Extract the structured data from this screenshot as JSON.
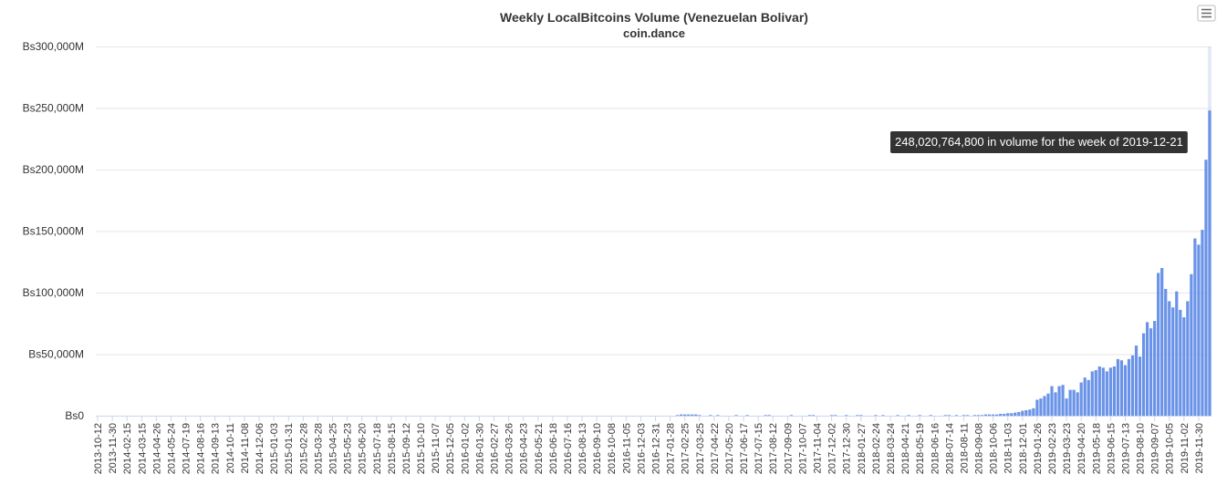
{
  "chart_data": {
    "type": "bar",
    "title": "Weekly LocalBitcoins Volume (Venezuelan Bolivar)",
    "subtitle": "coin.dance",
    "tooltip": "248,020,764,800 in volume for the week of 2019-12-21",
    "color": "#6a93e8",
    "grid": true,
    "ylim": [
      0,
      300000000000
    ],
    "yticks": [
      {
        "value": 0,
        "label": "Bs0"
      },
      {
        "value": 50000000000,
        "label": "Bs50,000M"
      },
      {
        "value": 100000000000,
        "label": "Bs100,000M"
      },
      {
        "value": 150000000000,
        "label": "Bs150,000M"
      },
      {
        "value": 200000000000,
        "label": "Bs200,000M"
      },
      {
        "value": 250000000000,
        "label": "Bs250,000M"
      },
      {
        "value": 300000000000,
        "label": "Bs300,000M"
      }
    ],
    "categories": [
      "2013-10-12",
      null,
      null,
      null,
      "2013-11-30",
      null,
      null,
      null,
      "2014-02-15",
      null,
      null,
      null,
      "2014-03-15",
      null,
      null,
      null,
      "2014-04-26",
      null,
      null,
      null,
      "2014-05-24",
      null,
      null,
      null,
      "2014-07-19",
      null,
      null,
      null,
      "2014-08-16",
      null,
      null,
      null,
      "2014-09-13",
      null,
      null,
      null,
      "2014-10-11",
      null,
      null,
      null,
      "2014-11-08",
      null,
      null,
      null,
      "2014-12-06",
      null,
      null,
      null,
      "2015-01-03",
      null,
      null,
      null,
      "2015-01-31",
      null,
      null,
      null,
      "2015-02-28",
      null,
      null,
      null,
      "2015-03-28",
      null,
      null,
      null,
      "2015-04-25",
      null,
      null,
      null,
      "2015-05-23",
      null,
      null,
      null,
      "2015-06-20",
      null,
      null,
      null,
      "2015-07-18",
      null,
      null,
      null,
      "2015-08-15",
      null,
      null,
      null,
      "2015-09-12",
      null,
      null,
      null,
      "2015-10-10",
      null,
      null,
      null,
      "2015-11-07",
      null,
      null,
      null,
      "2015-12-05",
      null,
      null,
      null,
      "2016-01-02",
      null,
      null,
      null,
      "2016-01-30",
      null,
      null,
      null,
      "2016-02-27",
      null,
      null,
      null,
      "2016-03-26",
      null,
      null,
      null,
      "2016-04-23",
      null,
      null,
      null,
      "2016-05-21",
      null,
      null,
      null,
      "2016-06-18",
      null,
      null,
      null,
      "2016-07-16",
      null,
      null,
      null,
      "2016-08-13",
      null,
      null,
      null,
      "2016-09-10",
      null,
      null,
      null,
      "2016-10-08",
      null,
      null,
      null,
      "2016-11-05",
      null,
      null,
      null,
      "2016-12-03",
      null,
      null,
      null,
      "2016-12-31",
      null,
      null,
      null,
      "2017-01-28",
      null,
      null,
      null,
      "2017-02-25",
      null,
      null,
      null,
      "2017-03-25",
      null,
      null,
      null,
      "2017-04-22",
      null,
      null,
      null,
      "2017-05-20",
      null,
      null,
      null,
      "2017-06-17",
      null,
      null,
      null,
      "2017-07-15",
      null,
      null,
      null,
      "2017-08-12",
      null,
      null,
      null,
      "2017-09-09",
      null,
      null,
      null,
      "2017-10-07",
      null,
      null,
      null,
      "2017-11-04",
      null,
      null,
      null,
      "2017-12-02",
      null,
      null,
      null,
      "2017-12-30",
      null,
      null,
      null,
      "2018-01-27",
      null,
      null,
      null,
      "2018-02-24",
      null,
      null,
      null,
      "2018-03-24",
      null,
      null,
      null,
      "2018-04-21",
      null,
      null,
      null,
      "2018-05-19",
      null,
      null,
      null,
      "2018-06-16",
      null,
      null,
      null,
      "2018-07-14",
      null,
      null,
      null,
      "2018-08-11",
      null,
      null,
      null,
      "2018-09-08",
      null,
      null,
      null,
      "2018-10-06",
      null,
      null,
      null,
      "2018-11-03",
      null,
      null,
      null,
      "2018-12-01",
      null,
      null,
      null,
      "2019-01-26",
      null,
      null,
      null,
      "2019-02-23",
      null,
      null,
      null,
      "2019-03-23",
      null,
      null,
      null,
      "2019-04-20",
      null,
      null,
      null,
      "2019-05-18",
      null,
      null,
      null,
      "2019-06-15",
      null,
      null,
      null,
      "2019-07-13",
      null,
      null,
      null,
      "2019-08-10",
      null,
      null,
      null,
      "2019-09-07",
      null,
      null,
      null,
      "2019-10-05",
      null,
      null,
      null,
      "2019-11-02",
      null,
      null,
      null,
      "2019-11-30",
      null,
      null,
      null
    ],
    "values": [
      0,
      0,
      0,
      0,
      0,
      0,
      0,
      0,
      0,
      0,
      0,
      0,
      0,
      0,
      0,
      0,
      0,
      0,
      0,
      0,
      0,
      0,
      0,
      0,
      0,
      0,
      0,
      0,
      0,
      0,
      0,
      0,
      0,
      0,
      0,
      0,
      0,
      0,
      0,
      0,
      0,
      0,
      0,
      0,
      0,
      0,
      0,
      0,
      0,
      0,
      0,
      0,
      0,
      0,
      0,
      0,
      0,
      0,
      0,
      0,
      0,
      0,
      0,
      0,
      0,
      0,
      0,
      0,
      0,
      0,
      0,
      0,
      0,
      0,
      0,
      0,
      0,
      0,
      0,
      0,
      0,
      0,
      0,
      0,
      0,
      0,
      0,
      0,
      0,
      0,
      0,
      0,
      0,
      0,
      0,
      0,
      0,
      0,
      0,
      0,
      0,
      0,
      0,
      0,
      0,
      0,
      0,
      0,
      0,
      0,
      0,
      0,
      0,
      0,
      0,
      0,
      0,
      0,
      0,
      0,
      0,
      0,
      0,
      0,
      0,
      0,
      0,
      0,
      0,
      0,
      0,
      0,
      0,
      0,
      0,
      0,
      0,
      0,
      0,
      0,
      0,
      0,
      0,
      0,
      0,
      0,
      0,
      0,
      0,
      0,
      0,
      0,
      0,
      0,
      0,
      0,
      0,
      0,
      500000000.0,
      1000000000.0,
      1000000000.0,
      1000000000.0,
      1000000000.0,
      1000000000.0,
      500000000.0,
      0,
      0,
      500000000.0,
      0,
      500000000.0,
      0,
      0,
      0,
      0,
      500000000.0,
      0,
      0,
      500000000.0,
      0,
      0,
      0,
      0,
      500000000.0,
      500000000.0,
      0,
      0,
      0,
      0,
      0,
      500000000.0,
      0,
      0,
      0,
      0,
      500000000.0,
      500000000.0,
      0,
      0,
      0,
      0,
      500000000.0,
      500000000.0,
      0,
      0,
      500000000.0,
      0,
      0,
      500000000.0,
      500000000.0,
      0,
      0,
      0,
      500000000.0,
      0,
      500000000.0,
      0,
      0,
      0,
      500000000.0,
      0,
      0,
      500000000.0,
      0,
      0,
      500000000.0,
      0,
      0,
      500000000.0,
      0,
      0,
      0,
      500000000.0,
      500000000.0,
      0,
      500000000.0,
      0,
      500000000.0,
      500000000.0,
      0,
      500000000.0,
      500000000.0,
      500000000.0,
      1000000000.0,
      1000000000.0,
      1000000000.0,
      1000000000.0,
      1500000000.0,
      1500000000.0,
      2000000000.0,
      2000000000.0,
      2500000000.0,
      3000000000.0,
      4000000000.0,
      4500000000.0,
      5000000000.0,
      6000000000.0,
      13000000000.0,
      14000000000.0,
      16000000000.0,
      18000000000.0,
      24000000000.0,
      19000000000.0,
      24000000000.0,
      25000000000.0,
      14000000000.0,
      21000000000.0,
      21000000000.0,
      19000000000.0,
      27000000000.0,
      31000000000.0,
      29000000000.0,
      36000000000.0,
      37000000000.0,
      40000000000.0,
      39000000000.0,
      36000000000.0,
      39000000000.0,
      40000000000.0,
      46000000000.0,
      45000000000.0,
      41000000000.0,
      46000000000.0,
      49000000000.0,
      57000000000.0,
      48000000000.0,
      67000000000.0,
      76000000000.0,
      71000000000.0,
      77000000000.0,
      116000000000.0,
      120000000000.0,
      103000000000.0,
      93000000000.0,
      88000000000.0,
      101000000000.0,
      86000000000.0,
      80000000000.0,
      93000000000.0,
      115000000000.0,
      144000000000.0,
      139000000000.0,
      151000000000.0,
      208000000000.0,
      248020764800
    ]
  }
}
